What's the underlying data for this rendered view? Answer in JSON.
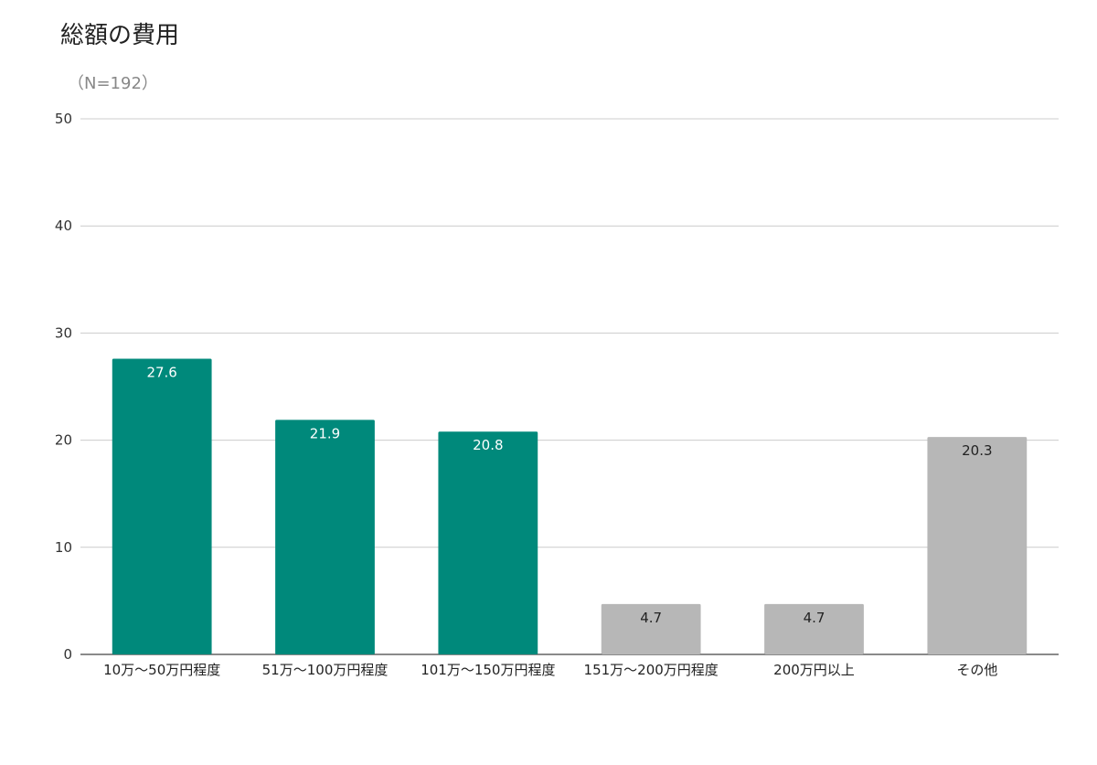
{
  "chart_data": {
    "type": "bar",
    "title": "総額の費用",
    "subtitle": "（N=192）",
    "categories": [
      "10万〜50万円程度",
      "51万〜100万円程度",
      "101万〜150万円程度",
      "151万〜200万円程度",
      "200万円以上",
      "その他"
    ],
    "values": [
      27.6,
      21.9,
      20.8,
      4.7,
      4.7,
      20.3
    ],
    "value_labels": [
      "27.6",
      "21.9",
      "20.8",
      "4.7",
      "4.7",
      "20.3"
    ],
    "bar_colors": [
      "#00897b",
      "#00897b",
      "#00897b",
      "#b7b7b7",
      "#b7b7b7",
      "#b7b7b7"
    ],
    "label_colors": [
      "#ffffff",
      "#ffffff",
      "#ffffff",
      "#222222",
      "#222222",
      "#222222"
    ],
    "yticks": [
      0,
      10,
      20,
      30,
      40,
      50
    ],
    "ylim": [
      0,
      50
    ],
    "xlabel": "",
    "ylabel": "",
    "grid": true,
    "legend": "none"
  }
}
